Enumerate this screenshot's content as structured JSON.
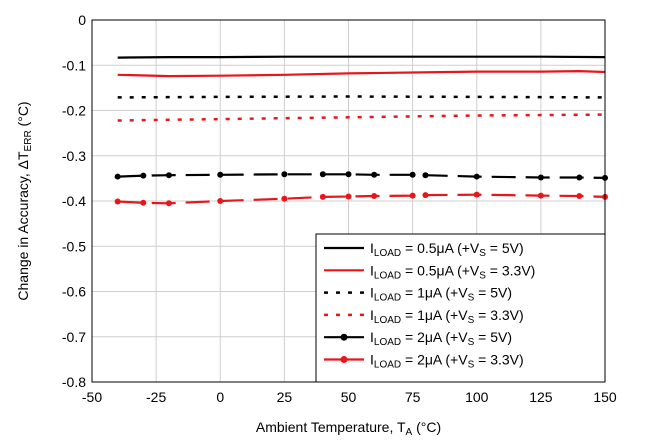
{
  "chart_data": {
    "type": "line",
    "title": "",
    "xlabel": {
      "text": "Ambient Temperature, T",
      "sub": "A",
      "unit": " (°C)"
    },
    "ylabel": {
      "text": "Change in Accuracy, ΔT",
      "sub": "ERR",
      "unit": " (°C)"
    },
    "xlim": [
      -50,
      150
    ],
    "ylim": [
      -0.8,
      0
    ],
    "xticks": [
      -50,
      -25,
      0,
      25,
      50,
      75,
      100,
      125,
      150
    ],
    "xtick_labels": [
      "-50",
      "-25",
      "0",
      "25",
      "50",
      "75",
      "100",
      "125",
      "150"
    ],
    "yticks": [
      0,
      -0.1,
      -0.2,
      -0.3,
      -0.4,
      -0.5,
      -0.6,
      -0.7,
      -0.8
    ],
    "ytick_labels": [
      "0",
      "-0.1",
      "-0.2",
      "-0.3",
      "-0.4",
      "-0.5",
      "-0.6",
      "-0.7",
      "-0.8"
    ],
    "grid": true,
    "legend_position": "bottom-right",
    "series": [
      {
        "name": "I_LOAD = 0.5μA (+V_S = 5V)",
        "legend_parts": [
          "I",
          "LOAD",
          " = 0.5μA (+V",
          "S",
          " = 5V)"
        ],
        "color": "#000000",
        "style": "solid",
        "markers": false,
        "x": [
          -40,
          -20,
          0,
          25,
          50,
          75,
          100,
          125,
          150
        ],
        "y": [
          -0.083,
          -0.082,
          -0.082,
          -0.081,
          -0.081,
          -0.081,
          -0.081,
          -0.081,
          -0.082
        ]
      },
      {
        "name": "I_LOAD = 0.5μA (+V_S = 3.3V)",
        "legend_parts": [
          "I",
          "LOAD",
          " = 0.5μA (+V",
          "S",
          " = 3.3V)"
        ],
        "color": "#e8151b",
        "style": "solid",
        "markers": false,
        "x": [
          -40,
          -20,
          0,
          25,
          50,
          75,
          100,
          125,
          140,
          150
        ],
        "y": [
          -0.121,
          -0.124,
          -0.123,
          -0.121,
          -0.118,
          -0.116,
          -0.114,
          -0.114,
          -0.113,
          -0.115
        ]
      },
      {
        "name": "I_LOAD = 1μA (+V_S = 5V)",
        "legend_parts": [
          "I",
          "LOAD",
          " = 1μA (+V",
          "S",
          " = 5V)"
        ],
        "color": "#000000",
        "style": "dotted",
        "markers": false,
        "x": [
          -40,
          0,
          50,
          100,
          150
        ],
        "y": [
          -0.171,
          -0.17,
          -0.169,
          -0.17,
          -0.171
        ]
      },
      {
        "name": "I_LOAD = 1μA (+V_S = 3.3V)",
        "legend_parts": [
          "I",
          "LOAD",
          " = 1μA (+V",
          "S",
          " = 3.3V)"
        ],
        "color": "#e8151b",
        "style": "dotted",
        "markers": false,
        "x": [
          -40,
          0,
          50,
          100,
          150
        ],
        "y": [
          -0.222,
          -0.219,
          -0.215,
          -0.211,
          -0.209
        ]
      },
      {
        "name": "I_LOAD = 2μA (+V_S = 5V)",
        "legend_parts": [
          "I",
          "LOAD",
          " = 2μA (+V",
          "S",
          " = 5V)"
        ],
        "color": "#000000",
        "style": "dashed",
        "markers": true,
        "x": [
          -40,
          -30,
          -20,
          0,
          25,
          40,
          50,
          60,
          75,
          80,
          100,
          125,
          140,
          150
        ],
        "y": [
          -0.346,
          -0.344,
          -0.343,
          -0.342,
          -0.341,
          -0.341,
          -0.341,
          -0.342,
          -0.342,
          -0.343,
          -0.346,
          -0.348,
          -0.348,
          -0.349
        ]
      },
      {
        "name": "I_LOAD = 2μA (+V_S = 3.3V)",
        "legend_parts": [
          "I",
          "LOAD",
          " = 2μA (+V",
          "S",
          " = 3.3V)"
        ],
        "color": "#e8151b",
        "style": "dashed",
        "markers": true,
        "x": [
          -40,
          -30,
          -20,
          0,
          25,
          40,
          50,
          60,
          75,
          80,
          100,
          125,
          140,
          150
        ],
        "y": [
          -0.401,
          -0.404,
          -0.405,
          -0.4,
          -0.395,
          -0.391,
          -0.39,
          -0.389,
          -0.388,
          -0.387,
          -0.386,
          -0.388,
          -0.389,
          -0.391
        ]
      }
    ]
  }
}
